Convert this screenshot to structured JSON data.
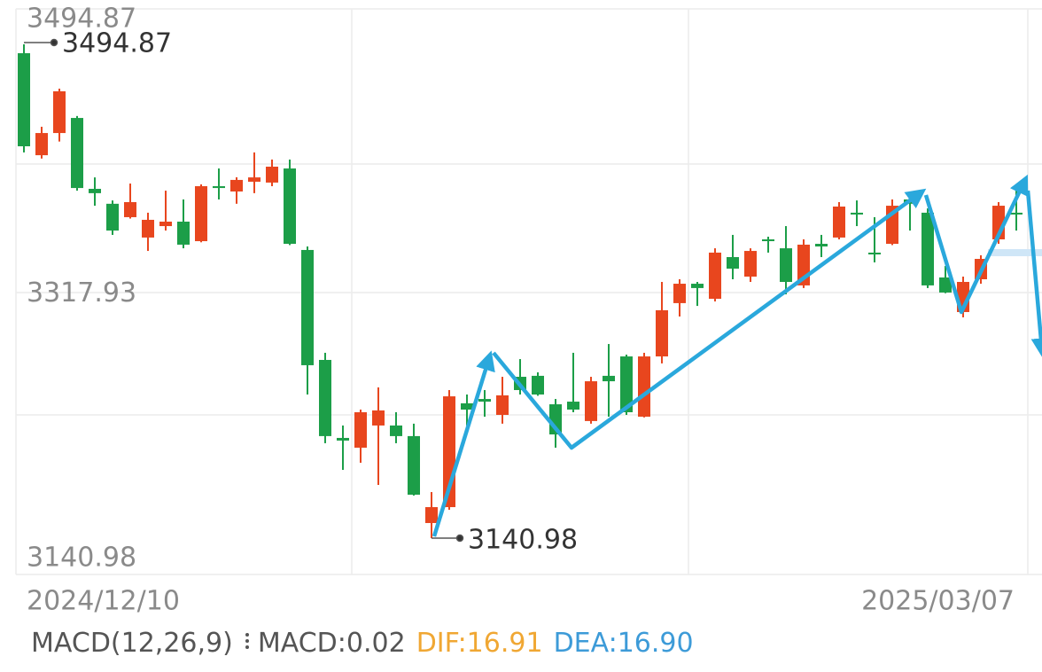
{
  "chart_data": {
    "type": "candlestick",
    "categories": [
      "2024/12/10",
      null,
      null,
      null,
      null,
      null,
      null,
      null,
      null,
      null,
      null,
      null,
      null,
      null,
      null,
      null,
      null,
      null,
      null,
      null,
      null,
      null,
      null,
      null,
      null,
      null,
      null,
      null,
      null,
      null,
      null,
      null,
      null,
      null,
      null,
      null,
      null,
      null,
      null,
      null,
      null,
      null,
      null,
      null,
      null,
      null,
      null,
      null,
      null,
      null,
      null,
      null,
      null,
      null,
      null,
      null,
      "2025/03/07"
    ],
    "candles": {
      "open": [
        3488.5,
        3415.4,
        3431.3,
        3442.1,
        3391.3,
        3380.6,
        3371.0,
        3356.4,
        3364.6,
        3367.8,
        3353.8,
        3393.2,
        3389.4,
        3396.4,
        3395.8,
        3405.9,
        3347.5,
        3268.7,
        3212.8,
        3205.8,
        3221.7,
        3221.7,
        3214.1,
        3151.8,
        3163.2,
        3237.6,
        3240.7,
        3229.3,
        3256.6,
        3257.3,
        3236.9,
        3238.8,
        3224.9,
        3257.3,
        3271.2,
        3228.0,
        3271.2,
        3309.4,
        3323.3,
        3312.5,
        3342.4,
        3328.4,
        3355.1,
        3348.7,
        3322.1,
        3351.9,
        3356.4,
        3374.2,
        3345.6,
        3351.9,
        3383.7,
        3374.2,
        3327.8,
        3303.0,
        3326.5,
        3355.1,
        3374.2
      ],
      "high": [
        3494.87,
        3435.8,
        3463.1,
        3443.5,
        3399.5,
        3383.0,
        3395.1,
        3374.2,
        3390.0,
        3383.7,
        3394.5,
        3405.9,
        3399.6,
        3417.4,
        3412.3,
        3412.3,
        3350.0,
        3273.8,
        3221.7,
        3233.1,
        3249.0,
        3231.2,
        3223.0,
        3174.0,
        3247.1,
        3243.9,
        3247.1,
        3256.6,
        3269.3,
        3259.8,
        3240.7,
        3273.8,
        3256.6,
        3280.1,
        3272.5,
        3273.8,
        3324.6,
        3326.5,
        3324.6,
        3348.7,
        3358.3,
        3348.7,
        3357.0,
        3364.6,
        3355.1,
        3358.3,
        3381.8,
        3383.0,
        3371.0,
        3383.7,
        3386.9,
        3377.3,
        3336.0,
        3328.4,
        3343.7,
        3381.8,
        3390.0
      ],
      "low": [
        3417.4,
        3413.0,
        3425.2,
        3390.0,
        3379.2,
        3358.3,
        3370.0,
        3346.8,
        3361.4,
        3348.7,
        3353.0,
        3383.7,
        3380.6,
        3388.2,
        3393.2,
        3351.0,
        3243.9,
        3209.0,
        3189.9,
        3195.0,
        3179.1,
        3209.0,
        3171.5,
        3140.98,
        3161.3,
        3221.7,
        3228.0,
        3223.0,
        3243.9,
        3243.0,
        3205.8,
        3231.2,
        3223.0,
        3228.0,
        3229.3,
        3227.5,
        3266.2,
        3299.8,
        3307.4,
        3310.6,
        3326.5,
        3324.6,
        3345.6,
        3315.7,
        3320.2,
        3342.4,
        3355.1,
        3364.6,
        3338.6,
        3351.0,
        3361.4,
        3320.2,
        3316.5,
        3299.2,
        3323.3,
        3351.9,
        3361.4
      ],
      "close": [
        3421.8,
        3431.3,
        3461.2,
        3391.9,
        3388.2,
        3361.4,
        3381.8,
        3369.1,
        3367.8,
        3351.3,
        3393.2,
        3391.9,
        3397.7,
        3399.5,
        3407.2,
        3351.9,
        3264.9,
        3214.1,
        3210.9,
        3231.2,
        3232.5,
        3214.1,
        3172.1,
        3163.2,
        3242.6,
        3233.1,
        3238.8,
        3243.3,
        3247.1,
        3243.9,
        3215.3,
        3233.1,
        3253.4,
        3253.4,
        3231.2,
        3271.2,
        3304.3,
        3323.3,
        3320.2,
        3345.6,
        3334.1,
        3346.8,
        3353.8,
        3324.6,
        3351.3,
        3350.0,
        3378.6,
        3372.9,
        3344.3,
        3379.2,
        3380.6,
        3322.1,
        3317.0,
        3324.6,
        3341.1,
        3379.2,
        3372.9
      ]
    },
    "up_color": "#e8461e",
    "down_color": "#1c9e48",
    "ylim": [
      3140.98,
      3494.87
    ],
    "yticks": [
      3494.87,
      3317.93,
      3140.98
    ],
    "macd": {
      "title": "MACD(12,26,9)",
      "items": [
        {
          "text": "MACD:0.02",
          "color": "#555555"
        },
        {
          "text": "DIF:16.91",
          "color": "#f0a733"
        },
        {
          "text": "DEA:16.90",
          "color": "#3d9bd8"
        }
      ]
    }
  }
}
